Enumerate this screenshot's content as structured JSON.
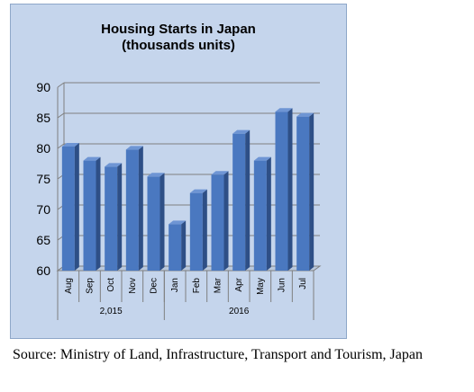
{
  "chart_data": {
    "type": "bar",
    "title": "Housing Starts in Japan",
    "subtitle": "(thousands units)",
    "categories": [
      "Aug",
      "Sep",
      "Oct",
      "Nov",
      "Dec",
      "Jan",
      "Feb",
      "Mar",
      "Apr",
      "May",
      "Jun",
      "Jul"
    ],
    "groups": [
      {
        "label": "2,015",
        "categories": [
          "Aug",
          "Sep",
          "Oct",
          "Nov",
          "Dec"
        ]
      },
      {
        "label": "2016",
        "categories": [
          "Jan",
          "Feb",
          "Mar",
          "Apr",
          "May",
          "Jun",
          "Jul"
        ]
      }
    ],
    "values": [
      80.3,
      78.0,
      77.0,
      79.8,
      75.4,
      67.6,
      72.7,
      75.7,
      82.4,
      78.0,
      86.0,
      85.2
    ],
    "yticks": [
      60,
      65,
      70,
      75,
      80,
      85,
      90
    ],
    "ylim": [
      60,
      90
    ],
    "grid": true,
    "bar_color": "#4a78c0",
    "background_color": "#c5d5ec"
  },
  "source": "Source: Ministry of Land, Infrastructure, Transport and Tourism, Japan"
}
